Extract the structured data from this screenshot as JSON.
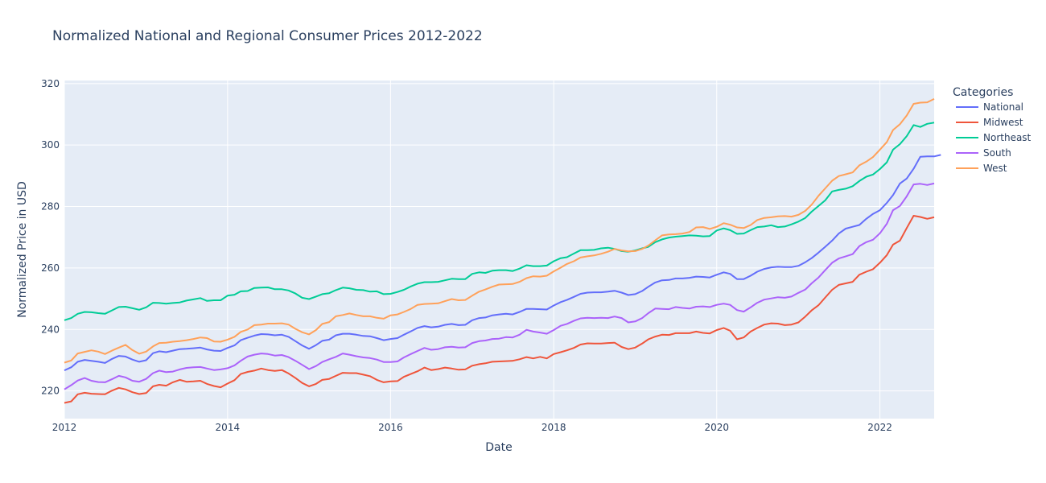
{
  "chart_data": {
    "type": "line",
    "title": "Normalized National and Regional Consumer Prices 2012-2022",
    "xlabel": "Date",
    "ylabel": "Normalized Price in USD",
    "legend_title": "Categories",
    "legend_position": "right",
    "grid": true,
    "xlim": [
      "2012-01-01",
      "2022-09-01"
    ],
    "ylim": [
      211,
      321
    ],
    "x_ticks": [
      "2012",
      "2014",
      "2016",
      "2018",
      "2020",
      "2022"
    ],
    "y_ticks": [
      220,
      240,
      260,
      280,
      300,
      320
    ],
    "x_start": "2012-01",
    "x_frequency": "monthly",
    "series": [
      {
        "name": "National",
        "color": "#636efa",
        "values": [
          226.7,
          227.7,
          229.5,
          230.1,
          229.8,
          229.5,
          229.1,
          230.4,
          231.4,
          231.2,
          230.2,
          229.5,
          230.0,
          232.3,
          232.9,
          232.6,
          233.1,
          233.6,
          233.7,
          233.9,
          234.1,
          233.5,
          233.1,
          233.0,
          234.0,
          234.8,
          236.5,
          237.3,
          238.0,
          238.5,
          238.4,
          238.1,
          238.3,
          237.6,
          236.2,
          234.8,
          233.7,
          234.9,
          236.3,
          236.7,
          238.1,
          238.6,
          238.6,
          238.3,
          237.9,
          237.8,
          237.2,
          236.5,
          236.9,
          237.2,
          238.3,
          239.4,
          240.5,
          241.1,
          240.7,
          240.9,
          241.5,
          241.8,
          241.4,
          241.5,
          243.0,
          243.7,
          243.9,
          244.6,
          244.9,
          245.1,
          244.9,
          245.7,
          246.7,
          246.7,
          246.6,
          246.5,
          247.8,
          248.9,
          249.6,
          250.6,
          251.6,
          252.0,
          252.1,
          252.1,
          252.3,
          252.6,
          252.0,
          251.2,
          251.5,
          252.5,
          253.9,
          255.3,
          256.0,
          256.1,
          256.6,
          256.6,
          256.8,
          257.2,
          257.1,
          256.9,
          257.8,
          258.6,
          258.1,
          256.4,
          256.4,
          257.5,
          258.8,
          259.7,
          260.2,
          260.4,
          260.3,
          260.3,
          260.7,
          261.9,
          263.2,
          265.0,
          266.9,
          268.9,
          271.2,
          272.8,
          273.4,
          274.0,
          276.0,
          277.6,
          278.8,
          281.2,
          283.7,
          287.5,
          289.1,
          292.3,
          296.2,
          296.3,
          296.3,
          296.8
        ]
      },
      {
        "name": "Midwest",
        "color": "#ef553b",
        "values": [
          216.1,
          216.6,
          218.9,
          219.4,
          219.1,
          219.0,
          218.9,
          220.1,
          221.0,
          220.5,
          219.6,
          219.0,
          219.3,
          221.5,
          222.0,
          221.7,
          222.8,
          223.6,
          223.0,
          223.1,
          223.3,
          222.3,
          221.6,
          221.2,
          222.4,
          223.5,
          225.5,
          226.2,
          226.6,
          227.3,
          226.8,
          226.5,
          226.8,
          225.7,
          224.2,
          222.6,
          221.5,
          222.3,
          223.6,
          223.9,
          224.9,
          225.9,
          225.8,
          225.8,
          225.3,
          224.8,
          223.6,
          222.8,
          223.1,
          223.2,
          224.6,
          225.5,
          226.4,
          227.6,
          226.8,
          227.1,
          227.6,
          227.3,
          226.9,
          227.0,
          228.2,
          228.7,
          229.0,
          229.5,
          229.6,
          229.7,
          229.8,
          230.3,
          231.0,
          230.6,
          231.1,
          230.6,
          232.0,
          232.6,
          233.2,
          234.0,
          235.1,
          235.5,
          235.4,
          235.4,
          235.6,
          235.7,
          234.3,
          233.6,
          234.1,
          235.4,
          236.8,
          237.7,
          238.3,
          238.2,
          238.8,
          238.8,
          238.8,
          239.3,
          238.9,
          238.7,
          239.8,
          240.5,
          239.6,
          236.8,
          237.4,
          239.3,
          240.5,
          241.6,
          242.0,
          241.9,
          241.4,
          241.6,
          242.3,
          244.2,
          246.2,
          247.9,
          250.4,
          252.9,
          254.5,
          255.0,
          255.5,
          257.8,
          258.8,
          259.6,
          261.7,
          264.2,
          267.6,
          268.9,
          273.0,
          277.0,
          276.6,
          276.0,
          276.5
        ]
      },
      {
        "name": "Northeast",
        "color": "#00cc96",
        "values": [
          243.0,
          243.7,
          245.1,
          245.7,
          245.6,
          245.3,
          245.1,
          246.2,
          247.3,
          247.4,
          246.9,
          246.4,
          247.2,
          248.7,
          248.6,
          248.4,
          248.6,
          248.8,
          249.4,
          249.8,
          250.2,
          249.3,
          249.5,
          249.5,
          251.0,
          251.3,
          252.4,
          252.5,
          253.5,
          253.6,
          253.7,
          253.1,
          253.1,
          252.7,
          251.7,
          250.3,
          249.9,
          250.7,
          251.5,
          251.8,
          252.8,
          253.6,
          253.4,
          252.9,
          252.8,
          252.3,
          252.4,
          251.5,
          251.6,
          252.2,
          252.9,
          254.0,
          254.9,
          255.4,
          255.4,
          255.5,
          256.0,
          256.5,
          256.4,
          256.4,
          258.1,
          258.6,
          258.4,
          259.1,
          259.3,
          259.3,
          259.0,
          259.8,
          260.9,
          260.6,
          260.6,
          260.8,
          262.2,
          263.2,
          263.5,
          264.7,
          265.8,
          265.8,
          265.9,
          266.4,
          266.6,
          266.2,
          265.5,
          265.3,
          265.7,
          266.4,
          266.9,
          268.4,
          269.3,
          269.9,
          270.2,
          270.4,
          270.6,
          270.5,
          270.3,
          270.4,
          272.2,
          272.9,
          272.3,
          271.1,
          271.2,
          272.3,
          273.3,
          273.5,
          273.9,
          273.3,
          273.5,
          274.2,
          275.1,
          276.3,
          278.3,
          280.2,
          282.0,
          284.9,
          285.4,
          285.8,
          286.6,
          288.3,
          289.7,
          290.4,
          292.2,
          294.4,
          298.5,
          300.3,
          302.9,
          306.5,
          305.9,
          306.9,
          307.3
        ]
      },
      {
        "name": "South",
        "color": "#ab63fa",
        "values": [
          220.5,
          221.9,
          223.4,
          224.2,
          223.3,
          222.9,
          222.8,
          223.8,
          224.9,
          224.4,
          223.3,
          223.0,
          223.9,
          225.8,
          226.6,
          226.1,
          226.3,
          227.0,
          227.5,
          227.7,
          227.8,
          227.3,
          226.8,
          227.0,
          227.4,
          228.3,
          229.8,
          231.2,
          231.8,
          232.2,
          232.0,
          231.5,
          231.7,
          231.0,
          229.8,
          228.5,
          227.1,
          228.1,
          229.4,
          230.3,
          231.1,
          232.2,
          231.8,
          231.3,
          230.9,
          230.7,
          230.2,
          229.4,
          229.4,
          229.6,
          230.9,
          232.0,
          233.0,
          234.0,
          233.4,
          233.6,
          234.2,
          234.4,
          234.1,
          234.2,
          235.6,
          236.2,
          236.4,
          236.9,
          237.0,
          237.5,
          237.4,
          238.3,
          239.9,
          239.3,
          239.0,
          238.6,
          239.8,
          241.2,
          241.8,
          242.8,
          243.6,
          243.8,
          243.7,
          243.8,
          243.7,
          244.2,
          243.7,
          242.3,
          242.6,
          243.7,
          245.3,
          246.8,
          246.7,
          246.6,
          247.3,
          247.0,
          246.8,
          247.4,
          247.5,
          247.3,
          248.0,
          248.4,
          248.0,
          246.3,
          245.8,
          247.2,
          248.7,
          249.7,
          250.1,
          250.5,
          250.3,
          250.7,
          251.9,
          253.0,
          255.0,
          256.9,
          259.3,
          261.7,
          263.1,
          263.8,
          264.5,
          267.1,
          268.4,
          269.2,
          271.3,
          274.4,
          278.8,
          280.2,
          283.3,
          287.2,
          287.4,
          287.0,
          287.5
        ]
      },
      {
        "name": "West",
        "color": "#ffa15a",
        "values": [
          229.2,
          229.9,
          232.2,
          232.7,
          233.2,
          232.8,
          232.0,
          233.1,
          234.1,
          235.0,
          233.3,
          232.1,
          232.8,
          234.5,
          235.6,
          235.7,
          236.0,
          236.2,
          236.5,
          236.9,
          237.4,
          237.2,
          236.1,
          236.0,
          236.7,
          237.6,
          239.2,
          240.0,
          241.4,
          241.6,
          241.9,
          241.9,
          242.0,
          241.6,
          240.2,
          239.1,
          238.4,
          239.8,
          241.8,
          242.4,
          244.3,
          244.7,
          245.2,
          244.7,
          244.3,
          244.3,
          243.8,
          243.5,
          244.6,
          244.9,
          245.7,
          246.7,
          248.0,
          248.3,
          248.4,
          248.5,
          249.2,
          249.9,
          249.5,
          249.6,
          251.0,
          252.3,
          253.0,
          253.9,
          254.6,
          254.7,
          254.8,
          255.5,
          256.7,
          257.3,
          257.2,
          257.5,
          258.9,
          260.1,
          261.3,
          262.2,
          263.4,
          263.8,
          264.1,
          264.6,
          265.3,
          266.2,
          265.7,
          265.4,
          265.5,
          266.2,
          267.3,
          269.0,
          270.6,
          270.9,
          271.0,
          271.2,
          271.7,
          273.2,
          273.3,
          272.7,
          273.4,
          274.6,
          274.1,
          273.2,
          273.0,
          274.0,
          275.6,
          276.3,
          276.5,
          276.8,
          276.9,
          276.7,
          277.3,
          278.6,
          280.6,
          283.5,
          285.9,
          288.4,
          289.9,
          290.5,
          291.1,
          293.4,
          294.6,
          296.1,
          298.5,
          301.0,
          304.9,
          306.8,
          309.6,
          313.4,
          313.8,
          313.9,
          315.0
        ]
      }
    ]
  }
}
